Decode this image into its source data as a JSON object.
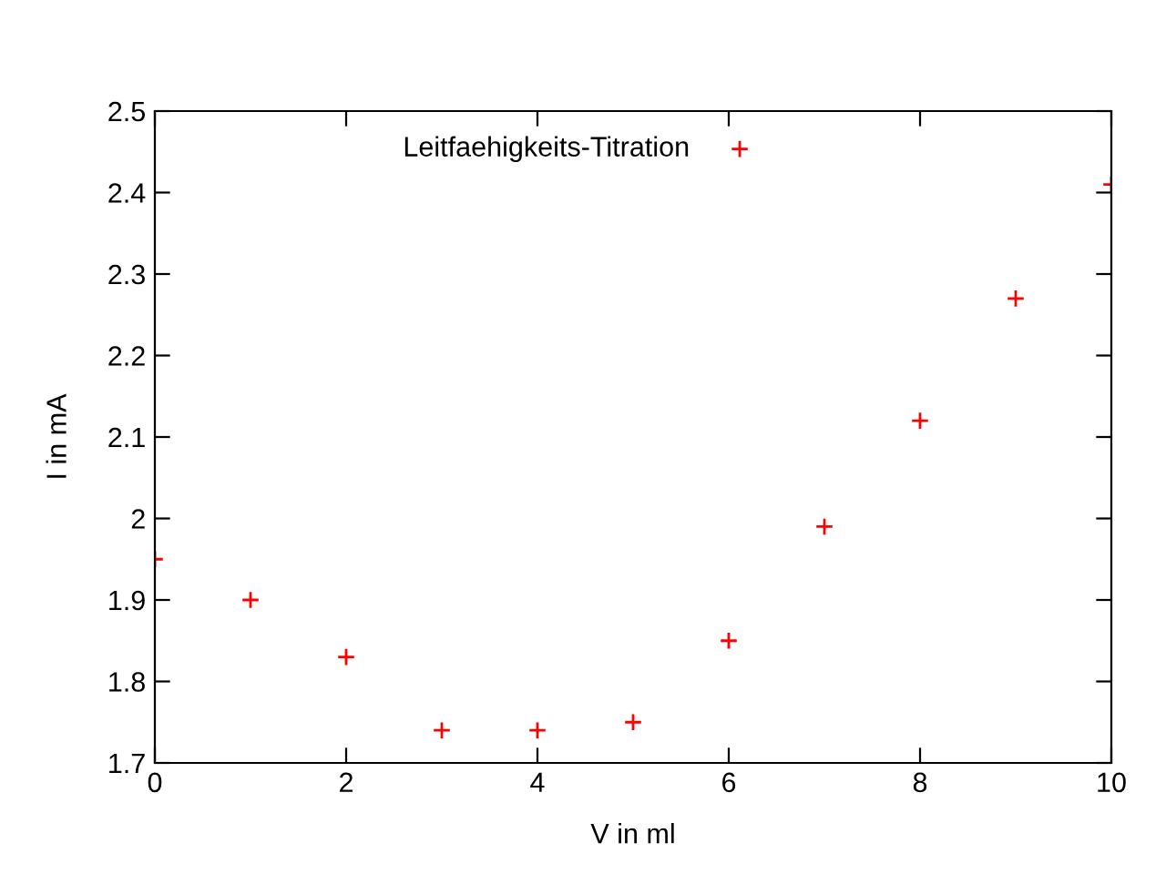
{
  "chart_data": {
    "type": "scatter",
    "xlabel": "V in ml",
    "ylabel": "I in mA",
    "x": [
      0,
      1,
      2,
      3,
      4,
      5,
      6,
      7,
      8,
      9,
      10
    ],
    "series": [
      {
        "name": "Leitfaehigkeits-Titration",
        "color": "#ff0000",
        "values": [
          1.95,
          1.9,
          1.83,
          1.74,
          1.74,
          1.75,
          1.85,
          1.99,
          2.12,
          2.27,
          2.41
        ]
      }
    ],
    "marker": "cross",
    "xlim": [
      0,
      10
    ],
    "ylim": [
      1.7,
      2.5
    ],
    "xticks": [
      0,
      2,
      4,
      6,
      8,
      10
    ],
    "yticks": [
      1.7,
      1.8,
      1.9,
      2,
      2.1,
      2.2,
      2.3,
      2.4,
      2.5
    ],
    "grid": false,
    "legend": "top"
  }
}
